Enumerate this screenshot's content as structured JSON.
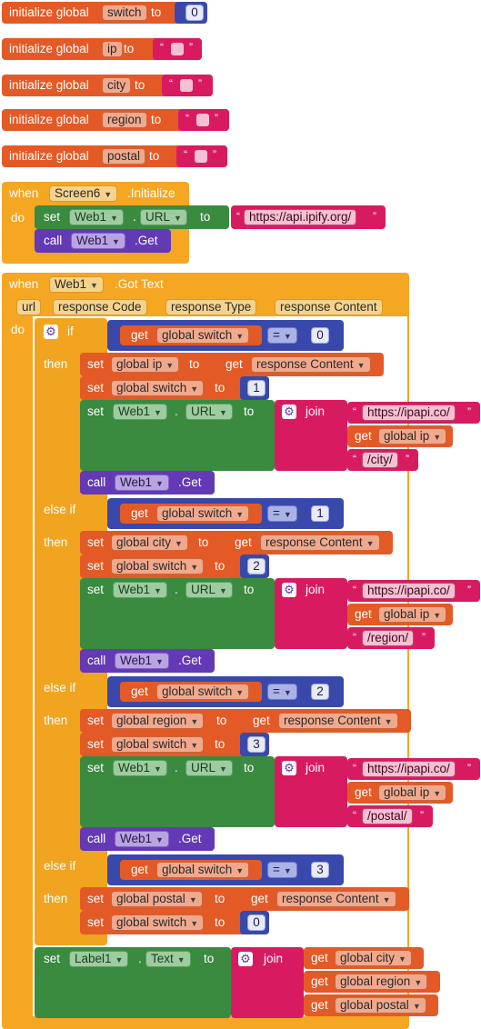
{
  "globals": [
    {
      "kw": "initialize global",
      "name": "switch",
      "to": "to",
      "value": "0",
      "type": "number"
    },
    {
      "kw": "initialize global",
      "name": "ip",
      "to": "to",
      "value": "",
      "type": "text"
    },
    {
      "kw": "initialize global",
      "name": "city",
      "to": "to",
      "value": "",
      "type": "text"
    },
    {
      "kw": "initialize global",
      "name": "region",
      "to": "to",
      "value": "",
      "type": "text"
    },
    {
      "kw": "initialize global",
      "name": "postal",
      "to": "to",
      "value": "",
      "type": "text"
    }
  ],
  "screen_init": {
    "when": "when",
    "component": "Screen6",
    "event": ".Initialize",
    "do": "do",
    "set": "set",
    "set_component": "Web1",
    "dot": ".",
    "set_prop": "URL",
    "to": "to",
    "url": "https://api.ipify.org/",
    "call": "call",
    "call_component": "Web1",
    "call_method": ".Get"
  },
  "got_text": {
    "when": "when",
    "component": "Web1",
    "event": ".Got Text",
    "params": [
      "url",
      "response Code",
      "response Type",
      "response Content"
    ],
    "do": "do",
    "if": "if",
    "then": "then",
    "else_if": "else if",
    "get": "get",
    "set": "set",
    "to": "to",
    "call": "call",
    "join": "join",
    "eq": "=",
    "branches": [
      {
        "cond_var": "global switch",
        "cond_val": "0",
        "set_var": "global ip",
        "get_var": "response Content",
        "switch_val": "1",
        "url_pre": "https://ipapi.co/",
        "url_mid_var": "global ip",
        "url_post": "/city/",
        "web": "Web1",
        "prop": "URL",
        "method": ".Get"
      },
      {
        "cond_var": "global switch",
        "cond_val": "1",
        "set_var": "global city",
        "get_var": "response Content",
        "switch_val": "2",
        "url_pre": "https://ipapi.co/",
        "url_mid_var": "global ip",
        "url_post": "/region/",
        "web": "Web1",
        "prop": "URL",
        "method": ".Get"
      },
      {
        "cond_var": "global switch",
        "cond_val": "2",
        "set_var": "global region",
        "get_var": "response Content",
        "switch_val": "3",
        "url_pre": "https://ipapi.co/",
        "url_mid_var": "global ip",
        "url_post": "/postal/",
        "web": "Web1",
        "prop": "URL",
        "method": ".Get"
      },
      {
        "cond_var": "global switch",
        "cond_val": "3",
        "set_var": "global postal",
        "get_var": "response Content",
        "switch_val": "0"
      }
    ],
    "label_set": {
      "component": "Label1",
      "prop": "Text",
      "join_vars": [
        "global city",
        "global region",
        "global postal"
      ]
    }
  },
  "colors": {
    "control": "#f0a420",
    "variable": "#e35a27",
    "component_set": "#3a8a3f",
    "component_call": "#6439b5",
    "math": "#3949ab",
    "text": "#d81b60",
    "event": "#f5a623"
  }
}
